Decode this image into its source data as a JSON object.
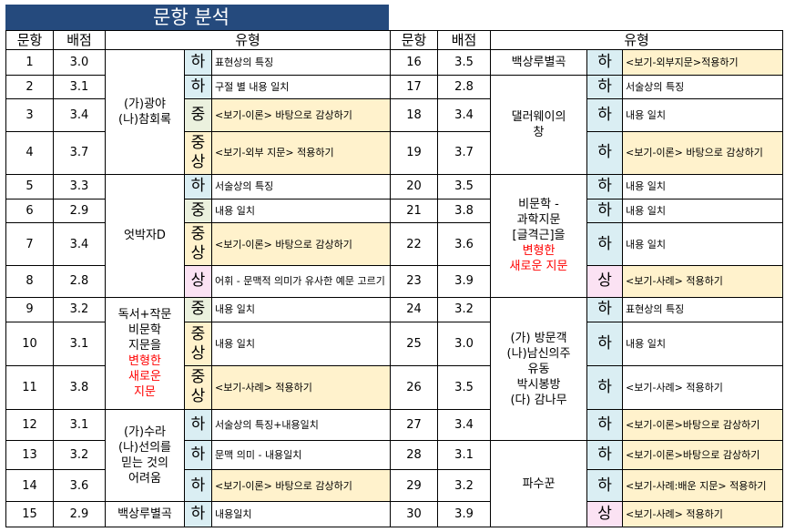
{
  "title": "문항 분석",
  "headers": {
    "num": "문항",
    "score": "배점",
    "type": "유형"
  },
  "left": {
    "rows": [
      {
        "num": "1",
        "score": "3.0",
        "level": "하",
        "desc": "표현상의 특징"
      },
      {
        "num": "2",
        "score": "3.1",
        "level": "하",
        "desc": "구절 별 내용 일치"
      },
      {
        "num": "3",
        "score": "3.4",
        "level": "중",
        "desc": "<보기-이론> 바탕으로 감상하기"
      },
      {
        "num": "4",
        "score": "3.7",
        "level": "중상",
        "desc": "<보기-외부 지문> 적용하기"
      },
      {
        "num": "5",
        "score": "3.3",
        "level": "하",
        "desc": "서술상의 특징"
      },
      {
        "num": "6",
        "score": "2.9",
        "level": "중",
        "desc": "내용 일치"
      },
      {
        "num": "7",
        "score": "3.4",
        "level": "중상",
        "desc": "<보기-이론> 바탕으로 감상하기"
      },
      {
        "num": "8",
        "score": "2.8",
        "level": "상",
        "desc": "어휘 - 문맥적 의미가 유사한 예문 고르기"
      },
      {
        "num": "9",
        "score": "3.2",
        "level": "중",
        "desc": "내용 일치"
      },
      {
        "num": "10",
        "score": "3.1",
        "level": "중상",
        "desc": "내용 일치"
      },
      {
        "num": "11",
        "score": "3.8",
        "level": "중상",
        "desc": "<보기-사례> 적용하기"
      },
      {
        "num": "12",
        "score": "3.1",
        "level": "하",
        "desc": "서술상의 특징+내용일치"
      },
      {
        "num": "13",
        "score": "3.2",
        "level": "하",
        "desc": "문맥 의미 - 내용일치"
      },
      {
        "num": "14",
        "score": "3.6",
        "level": "하",
        "desc": "<보기-이론> 바탕으로 감상하기"
      },
      {
        "num": "15",
        "score": "2.9",
        "level": "하",
        "desc": "내용일치"
      }
    ],
    "sources": [
      {
        "lines": [
          "(가)광야",
          "(나)참회록"
        ]
      },
      {
        "lines": [
          "엇박자D"
        ]
      },
      {
        "lines": [
          "독서+작문",
          "비문학",
          "지문을"
        ],
        "red_lines": [
          "변형한",
          "새로운",
          "지문"
        ]
      },
      {
        "lines": [
          "(가)수라",
          "(나)선의를",
          "믿는 것의",
          "어려움"
        ]
      },
      {
        "lines": [
          "백상루별곡"
        ]
      }
    ]
  },
  "right": {
    "rows": [
      {
        "num": "16",
        "score": "3.5",
        "level": "하",
        "desc": "<보기-외부지문>적용하기"
      },
      {
        "num": "17",
        "score": "2.8",
        "level": "하",
        "desc": "서술상의 특징"
      },
      {
        "num": "18",
        "score": "3.4",
        "level": "하",
        "desc": "내용 일치"
      },
      {
        "num": "19",
        "score": "3.7",
        "level": "하",
        "desc": "<보기-이론> 바탕으로 감상하기"
      },
      {
        "num": "20",
        "score": "3.5",
        "level": "하",
        "desc": "내용 일치"
      },
      {
        "num": "21",
        "score": "3.8",
        "level": "하",
        "desc": "내용 일치"
      },
      {
        "num": "22",
        "score": "3.6",
        "level": "하",
        "desc": "내용 일치"
      },
      {
        "num": "23",
        "score": "3.9",
        "level": "상",
        "desc": "<보기-사례> 적용하기"
      },
      {
        "num": "24",
        "score": "3.2",
        "level": "하",
        "desc": "표현상의 특징"
      },
      {
        "num": "25",
        "score": "3.0",
        "level": "하",
        "desc": "내용 일치"
      },
      {
        "num": "26",
        "score": "3.5",
        "level": "하",
        "desc": "<보기-사례> 적용하기"
      },
      {
        "num": "27",
        "score": "3.4",
        "level": "하",
        "desc": "<보기-이론>바탕으로 감상하기"
      },
      {
        "num": "28",
        "score": "3.1",
        "level": "하",
        "desc": "<보기-이론>바탕으로 감상하기"
      },
      {
        "num": "29",
        "score": "3.2",
        "level": "하",
        "desc": "<보기-사례:배운 지문> 적용하기"
      },
      {
        "num": "30",
        "score": "3.9",
        "level": "상",
        "desc": "<보기-사례> 적용하기"
      }
    ],
    "sources": [
      {
        "lines": [
          "백상루별곡"
        ]
      },
      {
        "lines": [
          "댈러웨이의",
          "창"
        ]
      },
      {
        "lines": [
          "비문학 -",
          "과학지문",
          "[글격근]을"
        ],
        "red_lines": [
          "변형한",
          "새로운 지문"
        ]
      },
      {
        "lines": [
          "(가) 방문객",
          "(나)남신의주",
          "유동",
          "박시봉방",
          "(다) 감나무"
        ]
      },
      {
        "lines": [
          "파수꾼"
        ]
      }
    ]
  },
  "colors": {
    "title_bg": "#254a7d",
    "level_ha": "#daeef3",
    "level_jung": "#ebf1de",
    "level_jungsang": "#fff2cc",
    "level_sang": "#fbe2f3",
    "desc_highlight": "#fff2cc",
    "emphasis_text": "#ff0000"
  }
}
